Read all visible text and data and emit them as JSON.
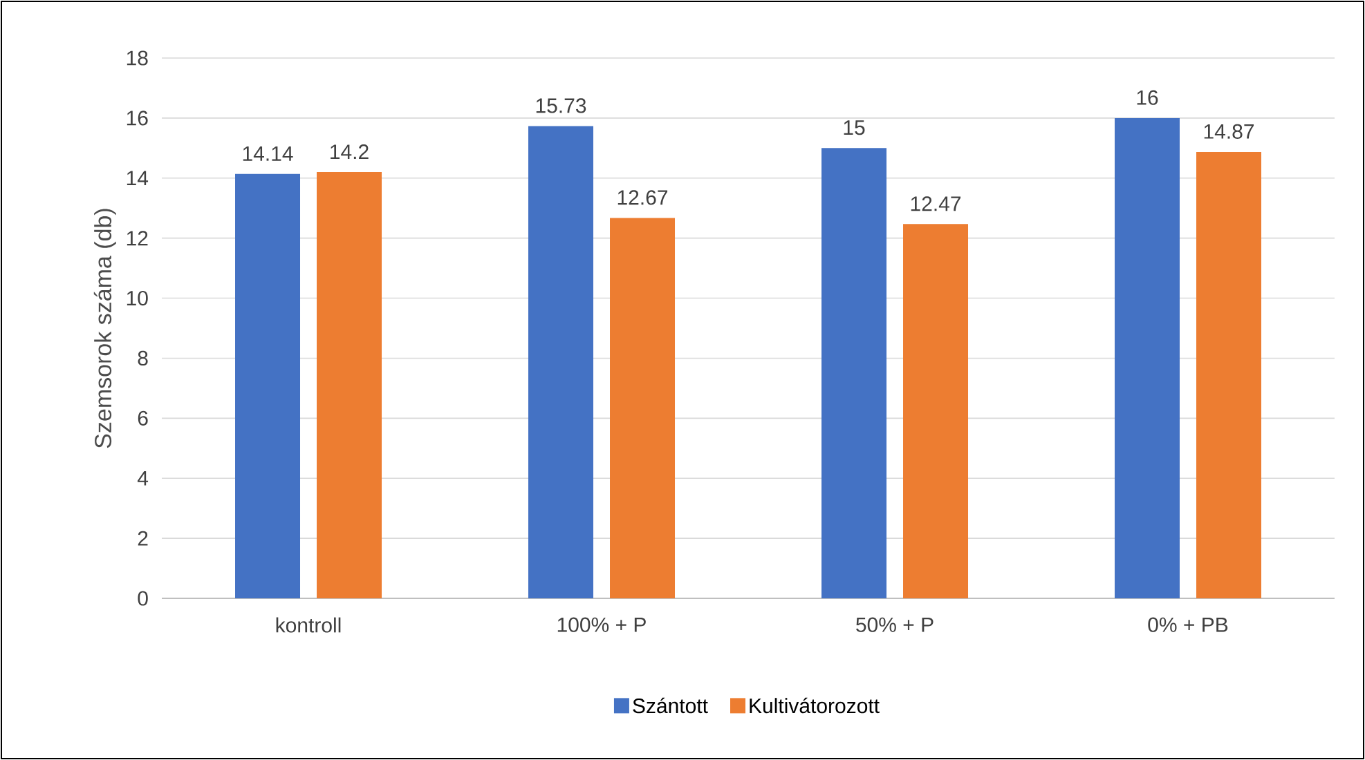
{
  "chart_data": {
    "type": "bar",
    "ylabel": "Szemsorok száma (db)",
    "categories": [
      "kontroll",
      "100% + P",
      "50% + P",
      "0% + PB"
    ],
    "series": [
      {
        "name": "Szántott",
        "color": "#4472c4",
        "values": [
          14.14,
          15.73,
          15,
          16
        ]
      },
      {
        "name": "Kultivátorozott",
        "color": "#ed7d31",
        "values": [
          14.2,
          12.67,
          12.47,
          14.87
        ]
      }
    ],
    "ylim": [
      0,
      18
    ],
    "yticks": [
      0,
      2,
      4,
      6,
      8,
      10,
      12,
      14,
      16,
      18
    ],
    "grid": "y",
    "legend": "bottom",
    "data_labels": true
  }
}
